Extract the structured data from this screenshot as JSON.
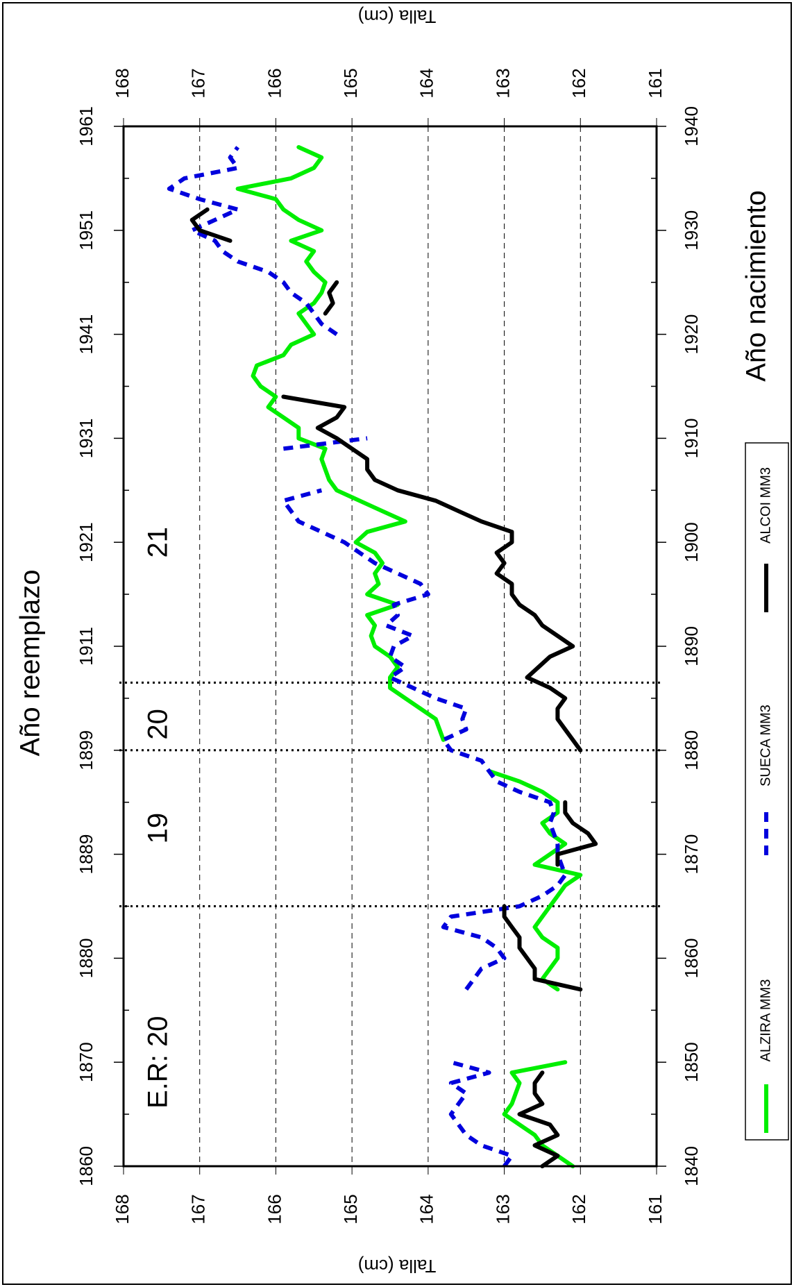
{
  "chart_data": {
    "type": "line",
    "orientation": "rotated 90° clockwise",
    "x_axis_bottom": {
      "label": "Año reemplazo",
      "ticks": [
        "1860",
        "1870",
        "1880",
        "1889",
        "1899",
        "1911",
        "1921",
        "1931",
        "1941",
        "1951",
        "1961"
      ]
    },
    "x_axis_top": {
      "label": "Año nacimiento",
      "ticks": [
        "1840",
        "1850",
        "1860",
        "1870",
        "1880",
        "1890",
        "1900",
        "1910",
        "1920",
        "1930",
        "1940"
      ],
      "range": [
        1840,
        1940
      ]
    },
    "y_axis": {
      "label": "Talla (cm)",
      "ticks": [
        "168",
        "167",
        "166",
        "165",
        "164",
        "163",
        "162",
        "161"
      ],
      "range": [
        161,
        168
      ],
      "grid": "dashed"
    },
    "regime_lines_birth_year": [
      1865,
      1880,
      1886.5
    ],
    "annotations": [
      {
        "text": "E.R: 20",
        "x": 1850
      },
      {
        "text": "19",
        "x": 1872.5
      },
      {
        "text": "20",
        "x": 1882.5
      },
      {
        "text": "21",
        "x": 1900
      }
    ],
    "legend": {
      "placement": "left",
      "items": [
        {
          "label": "ALZIRA MM3",
          "color": "#00ee00",
          "style": "solid"
        },
        {
          "label": "SUECA MM3",
          "color": "#0000dd",
          "style": "dashed"
        },
        {
          "label": "ALCOI MM3",
          "color": "#000000",
          "style": "solid"
        }
      ]
    },
    "series": [
      {
        "name": "ALZIRA MM3",
        "color": "#00ee00",
        "dash": "",
        "segments": [
          [
            [
              1840,
              162.1
            ],
            [
              1841,
              162.3
            ],
            [
              1842,
              162.5
            ],
            [
              1843,
              162.6
            ],
            [
              1844,
              162.8
            ],
            [
              1845,
              163.0
            ],
            [
              1846,
              162.9
            ],
            [
              1847,
              162.85
            ],
            [
              1848,
              162.8
            ],
            [
              1849,
              162.9
            ],
            [
              1850,
              162.2
            ]
          ],
          [
            [
              1857,
              162.3
            ],
            [
              1858,
              162.5
            ],
            [
              1859,
              162.4
            ],
            [
              1860,
              162.3
            ],
            [
              1861,
              162.3
            ],
            [
              1862,
              162.5
            ],
            [
              1863,
              162.6
            ],
            [
              1864,
              162.5
            ],
            [
              1865,
              162.4
            ],
            [
              1866,
              162.3
            ],
            [
              1867,
              162.2
            ],
            [
              1868,
              162.0
            ],
            [
              1869,
              162.6
            ],
            [
              1870,
              162.4
            ],
            [
              1871,
              162.2
            ],
            [
              1872,
              162.4
            ],
            [
              1873,
              162.5
            ],
            [
              1874,
              162.3
            ],
            [
              1875,
              162.3
            ],
            [
              1876,
              162.5
            ],
            [
              1877,
              162.8
            ],
            [
              1878,
              163.2
            ]
          ],
          [
            [
              1881,
              163.8
            ],
            [
              1882,
              163.85
            ],
            [
              1883,
              163.9
            ],
            [
              1884,
              164.1
            ],
            [
              1885,
              164.3
            ],
            [
              1886,
              164.5
            ],
            [
              1887,
              164.5
            ],
            [
              1888,
              164.4
            ],
            [
              1889,
              164.5
            ],
            [
              1890,
              164.7
            ],
            [
              1891,
              164.75
            ],
            [
              1892,
              164.7
            ],
            [
              1893,
              164.8
            ],
            [
              1894,
              164.4
            ],
            [
              1895,
              164.8
            ],
            [
              1896,
              164.65
            ],
            [
              1897,
              164.7
            ],
            [
              1898,
              164.6
            ],
            [
              1899,
              164.7
            ],
            [
              1900,
              164.95
            ],
            [
              1901,
              164.8
            ],
            [
              1902,
              164.3
            ],
            [
              1903,
              164.6
            ],
            [
              1904,
              164.9
            ],
            [
              1905,
              165.2
            ],
            [
              1906,
              165.3
            ],
            [
              1907,
              165.35
            ],
            [
              1908,
              165.4
            ],
            [
              1909,
              165.35
            ],
            [
              1910,
              165.7
            ],
            [
              1911,
              165.7
            ],
            [
              1912,
              165.9
            ],
            [
              1913,
              166.1
            ],
            [
              1914,
              166.0
            ],
            [
              1915,
              166.2
            ],
            [
              1916,
              166.3
            ],
            [
              1917,
              166.25
            ],
            [
              1918,
              165.9
            ],
            [
              1919,
              165.8
            ],
            [
              1920,
              165.5
            ],
            [
              1921,
              165.6
            ],
            [
              1922,
              165.7
            ],
            [
              1923,
              165.5
            ],
            [
              1924,
              165.4
            ],
            [
              1925,
              165.35
            ],
            [
              1926,
              165.5
            ],
            [
              1927,
              165.6
            ],
            [
              1928,
              165.5
            ],
            [
              1929,
              165.8
            ],
            [
              1930,
              165.4
            ],
            [
              1931,
              165.7
            ],
            [
              1932,
              165.9
            ],
            [
              1933,
              166.0
            ],
            [
              1934,
              166.5
            ],
            [
              1935,
              165.8
            ],
            [
              1936,
              165.5
            ],
            [
              1937,
              165.4
            ],
            [
              1938,
              165.7
            ]
          ]
        ]
      },
      {
        "name": "SUECA MM3",
        "color": "#0000dd",
        "dash": "14,10",
        "segments": [
          [
            [
              1840,
              163.0
            ],
            [
              1841,
              162.9
            ],
            [
              1842,
              163.3
            ],
            [
              1843,
              163.5
            ],
            [
              1844,
              163.6
            ],
            [
              1845,
              163.7
            ],
            [
              1846,
              163.6
            ],
            [
              1847,
              163.5
            ],
            [
              1848,
              163.7
            ],
            [
              1849,
              163.2
            ],
            [
              1850,
              163.7
            ]
          ],
          [
            [
              1857,
              163.5
            ],
            [
              1858,
              163.4
            ],
            [
              1859,
              163.3
            ],
            [
              1860,
              163.0
            ],
            [
              1861,
              163.1
            ],
            [
              1862,
              163.3
            ],
            [
              1863,
              163.8
            ],
            [
              1864,
              163.7
            ],
            [
              1865,
              162.8
            ],
            [
              1866,
              162.5
            ],
            [
              1867,
              162.3
            ],
            [
              1868,
              162.2
            ],
            [
              1869,
              162.25
            ],
            [
              1870,
              162.3
            ],
            [
              1871,
              162.3
            ],
            [
              1872,
              162.35
            ],
            [
              1873,
              162.4
            ],
            [
              1874,
              162.35
            ],
            [
              1875,
              162.4
            ],
            [
              1876,
              162.8
            ],
            [
              1877,
              163.1
            ],
            [
              1878,
              163.2
            ],
            [
              1879,
              163.3
            ],
            [
              1880,
              163.7
            ],
            [
              1881,
              163.8
            ],
            [
              1882,
              163.5
            ],
            [
              1883,
              163.55
            ],
            [
              1884,
              163.5
            ],
            [
              1885,
              163.9
            ],
            [
              1886,
              164.2
            ],
            [
              1887,
              164.5
            ],
            [
              1888,
              164.3
            ],
            [
              1889,
              164.5
            ],
            [
              1890,
              164.45
            ],
            [
              1891,
              164.2
            ],
            [
              1892,
              164.55
            ],
            [
              1893,
              164.4
            ],
            [
              1894,
              164.45
            ],
            [
              1895,
              164.0
            ],
            [
              1896,
              164.1
            ],
            [
              1897,
              164.4
            ],
            [
              1898,
              164.7
            ],
            [
              1899,
              164.9
            ],
            [
              1900,
              165.1
            ],
            [
              1901,
              165.4
            ],
            [
              1902,
              165.7
            ],
            [
              1903,
              165.8
            ],
            [
              1904,
              165.9
            ],
            [
              1905,
              165.4
            ]
          ],
          [
            [
              1909,
              165.9
            ],
            [
              1910,
              164.8
            ]
          ],
          [
            [
              1920,
              165.2
            ],
            [
              1921,
              165.4
            ],
            [
              1922,
              165.5
            ],
            [
              1923,
              165.6
            ],
            [
              1924,
              165.8
            ],
            [
              1925,
              165.9
            ],
            [
              1926,
              166.1
            ],
            [
              1927,
              166.5
            ],
            [
              1928,
              166.7
            ],
            [
              1929,
              166.8
            ],
            [
              1930,
              167.1
            ],
            [
              1931,
              166.8
            ],
            [
              1932,
              166.5
            ],
            [
              1933,
              167.0
            ],
            [
              1934,
              167.4
            ],
            [
              1935,
              167.2
            ],
            [
              1936,
              166.5
            ],
            [
              1937,
              166.6
            ],
            [
              1938,
              166.5
            ]
          ]
        ]
      },
      {
        "name": "ALCOI MM3",
        "color": "#000000",
        "dash": "",
        "segments": [
          [
            [
              1840,
              162.5
            ],
            [
              1841,
              162.3
            ],
            [
              1842,
              162.6
            ],
            [
              1843,
              162.3
            ],
            [
              1844,
              162.4
            ],
            [
              1845,
              162.8
            ],
            [
              1846,
              162.5
            ],
            [
              1847,
              162.6
            ],
            [
              1848,
              162.6
            ],
            [
              1849,
              162.5
            ]
          ],
          [
            [
              1857,
              162.0
            ],
            [
              1858,
              162.6
            ],
            [
              1859,
              162.6
            ],
            [
              1860,
              162.7
            ],
            [
              1861,
              162.8
            ],
            [
              1862,
              162.8
            ],
            [
              1863,
              162.9
            ],
            [
              1864,
              163.0
            ],
            [
              1865,
              163.0
            ]
          ],
          [
            [
              1869,
              162.3
            ],
            [
              1870,
              162.3
            ],
            [
              1871,
              161.8
            ],
            [
              1872,
              161.9
            ],
            [
              1873,
              162.1
            ],
            [
              1874,
              162.2
            ],
            [
              1875,
              162.2
            ]
          ],
          [
            [
              1880,
              162.0
            ],
            [
              1881,
              162.1
            ],
            [
              1882,
              162.2
            ],
            [
              1883,
              162.3
            ],
            [
              1884,
              162.3
            ],
            [
              1885,
              162.2
            ],
            [
              1886,
              162.4
            ],
            [
              1887,
              162.7
            ],
            [
              1888,
              162.55
            ],
            [
              1889,
              162.4
            ],
            [
              1890,
              162.1
            ],
            [
              1891,
              162.3
            ],
            [
              1892,
              162.5
            ],
            [
              1893,
              162.6
            ],
            [
              1894,
              162.8
            ],
            [
              1895,
              162.9
            ],
            [
              1896,
              162.9
            ],
            [
              1897,
              163.1
            ],
            [
              1898,
              163.0
            ],
            [
              1899,
              163.1
            ],
            [
              1900,
              162.9
            ],
            [
              1901,
              162.9
            ],
            [
              1902,
              163.3
            ],
            [
              1903,
              163.6
            ],
            [
              1904,
              163.9
            ],
            [
              1905,
              164.4
            ],
            [
              1906,
              164.7
            ],
            [
              1907,
              164.8
            ],
            [
              1908,
              164.8
            ],
            [
              1909,
              165.0
            ],
            [
              1910,
              165.2
            ],
            [
              1911,
              165.45
            ],
            [
              1912,
              165.2
            ],
            [
              1913,
              165.1
            ],
            [
              1914,
              165.9
            ]
          ],
          [
            [
              1922,
              165.35
            ],
            [
              1923,
              165.25
            ],
            [
              1924,
              165.3
            ],
            [
              1925,
              165.2
            ]
          ],
          [
            [
              1929,
              166.6
            ],
            [
              1930,
              167.0
            ],
            [
              1931,
              167.1
            ],
            [
              1932,
              166.9
            ]
          ]
        ]
      }
    ]
  }
}
